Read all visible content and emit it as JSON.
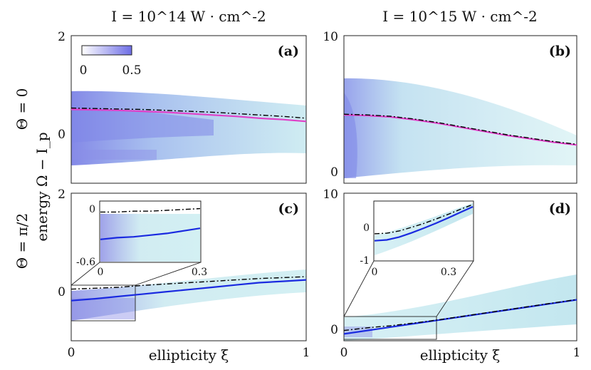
{
  "figure": {
    "col_titles": [
      "I = 10^14 W · cm^-2",
      "I = 10^15 W · cm^-2"
    ],
    "row_labels": [
      "Θ = 0",
      "Θ = π/2"
    ],
    "ylabel": "energy Ω − I_p",
    "xlabel": "ellipticity ξ",
    "colorbar": {
      "min": "0",
      "max": "0.5",
      "low_color": "#ffffff",
      "high_color": "#6e6ee6"
    },
    "colors": {
      "dist_light": "#c6ecee",
      "dist_dark": "#8a8ee8",
      "magenta": "#e040c8",
      "blue": "#1a2ae0",
      "black_dash": "#000000",
      "frame": "#222222"
    }
  },
  "chart_data": [
    {
      "type": "line",
      "panel": "(a)",
      "xlim": [
        0,
        1
      ],
      "ylim": [
        -1.2,
        2
      ],
      "yticks": [
        "0",
        "2"
      ],
      "xticks": [],
      "x": [
        0,
        0.1,
        0.2,
        0.3,
        0.4,
        0.5,
        0.6,
        0.7,
        0.8,
        0.9,
        1.0
      ],
      "series": [
        {
          "style": "solid-magenta",
          "values": [
            0.4,
            0.39,
            0.38,
            0.36,
            0.34,
            0.31,
            0.28,
            0.25,
            0.21,
            0.18,
            0.14
          ]
        },
        {
          "style": "dashdot-black",
          "values": [
            0.43,
            0.42,
            0.41,
            0.4,
            0.38,
            0.36,
            0.34,
            0.31,
            0.28,
            0.25,
            0.21
          ]
        }
      ]
    },
    {
      "type": "line",
      "panel": "(b)",
      "xlim": [
        0,
        1
      ],
      "ylim": [
        -0.8,
        10
      ],
      "yticks": [
        "0",
        "10"
      ],
      "xticks": [],
      "x": [
        0,
        0.1,
        0.2,
        0.3,
        0.4,
        0.5,
        0.6,
        0.7,
        0.8,
        0.9,
        1.0
      ],
      "series": [
        {
          "style": "solid-magenta",
          "values": [
            4.2,
            4.15,
            4.05,
            3.85,
            3.6,
            3.3,
            3.0,
            2.7,
            2.45,
            2.2,
            2.0
          ]
        },
        {
          "style": "dashdot-black",
          "values": [
            4.25,
            4.2,
            4.1,
            3.9,
            3.65,
            3.35,
            3.05,
            2.75,
            2.5,
            2.25,
            2.05
          ]
        }
      ]
    },
    {
      "type": "line",
      "panel": "(c)",
      "xlim": [
        0,
        1
      ],
      "ylim": [
        -1.2,
        2
      ],
      "yticks": [
        "0",
        "2"
      ],
      "xticks": [
        "0",
        "1"
      ],
      "x": [
        0,
        0.1,
        0.2,
        0.3,
        0.4,
        0.5,
        0.6,
        0.7,
        0.8,
        0.9,
        1.0
      ],
      "series": [
        {
          "style": "solid-blue",
          "values": [
            -0.33,
            -0.29,
            -0.24,
            -0.19,
            -0.14,
            -0.09,
            -0.04,
            0.01,
            0.06,
            0.09,
            0.12
          ]
        },
        {
          "style": "dashdot-black",
          "values": [
            -0.08,
            -0.06,
            -0.04,
            0.0,
            0.03,
            0.06,
            0.09,
            0.12,
            0.15,
            0.17,
            0.19
          ]
        }
      ],
      "inset": {
        "xlim": [
          0,
          0.3
        ],
        "ylim": [
          -0.6,
          0.1
        ],
        "xticks": [
          "0",
          "0.3"
        ],
        "yticks": [
          "-0.6",
          "0"
        ],
        "x": [
          0,
          0.05,
          0.1,
          0.15,
          0.2,
          0.25,
          0.3
        ],
        "series": [
          {
            "style": "solid-blue",
            "values": [
              -0.34,
              -0.32,
              -0.31,
              -0.29,
              -0.27,
              -0.24,
              -0.21
            ]
          },
          {
            "style": "dashdot-black",
            "values": [
              -0.02,
              -0.02,
              -0.01,
              -0.01,
              0.0,
              0.01,
              0.02
            ]
          }
        ]
      }
    },
    {
      "type": "line",
      "panel": "(d)",
      "xlim": [
        0,
        1
      ],
      "ylim": [
        -0.8,
        10
      ],
      "yticks": [
        "0",
        "10"
      ],
      "xticks": [
        "0",
        "1"
      ],
      "x": [
        0,
        0.1,
        0.2,
        0.3,
        0.4,
        0.5,
        0.6,
        0.7,
        0.8,
        0.9,
        1.0
      ],
      "series": [
        {
          "style": "solid-blue",
          "values": [
            -0.3,
            -0.05,
            0.2,
            0.45,
            0.7,
            0.95,
            1.2,
            1.45,
            1.7,
            1.95,
            2.2
          ]
        },
        {
          "style": "dashdot-black",
          "values": [
            -0.05,
            0.15,
            0.3,
            0.5,
            0.72,
            0.97,
            1.22,
            1.47,
            1.72,
            1.97,
            2.22
          ]
        }
      ],
      "inset": {
        "xlim": [
          0,
          0.4
        ],
        "ylim": [
          -1,
          1.1
        ],
        "xticks": [
          "0",
          "0.3"
        ],
        "yticks": [
          "-1",
          "0"
        ],
        "x": [
          0,
          0.05,
          0.1,
          0.15,
          0.2,
          0.25,
          0.3,
          0.35,
          0.4
        ],
        "series": [
          {
            "style": "solid-blue",
            "values": [
              -0.3,
              -0.27,
              -0.17,
              -0.02,
              0.15,
              0.33,
              0.52,
              0.72,
              0.92
            ]
          },
          {
            "style": "dashdot-black",
            "values": [
              -0.05,
              -0.03,
              0.05,
              0.18,
              0.32,
              0.48,
              0.65,
              0.83,
              1.0
            ]
          }
        ]
      }
    }
  ]
}
